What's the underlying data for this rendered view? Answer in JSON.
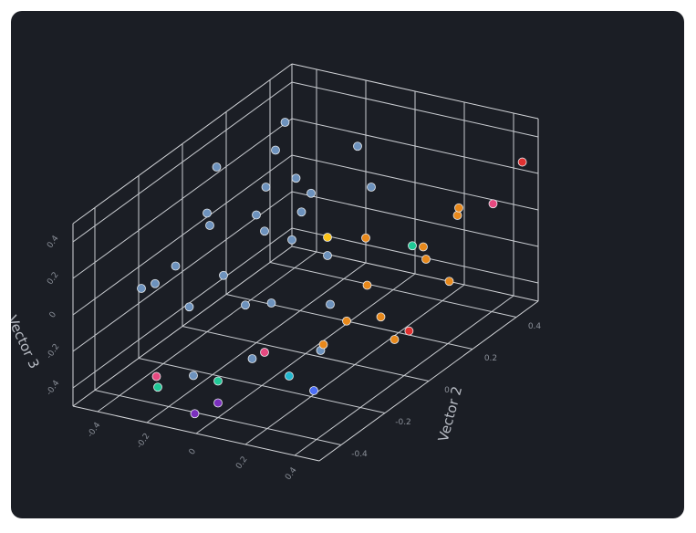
{
  "chart_data": {
    "type": "scatter3d",
    "ylabel": "Vector 2",
    "zlabel": "Vector 3",
    "xlim": [
      -0.5,
      0.5
    ],
    "ylim": [
      -0.5,
      0.5
    ],
    "zlim": [
      -0.5,
      0.5
    ],
    "xticks": [
      -0.4,
      -0.2,
      0,
      0.2,
      0.4
    ],
    "yticks": [
      -0.4,
      -0.2,
      0,
      0.2,
      0.4
    ],
    "zticks": [
      -0.4,
      -0.2,
      0,
      0.2,
      0.4
    ],
    "grid": true,
    "x": [
      -0.35,
      -0.3,
      -0.1,
      -0.25,
      -0.2,
      -0.4,
      -0.3,
      -0.15,
      -0.35,
      -0.2,
      -0.1,
      -0.3,
      -0.4,
      -0.25,
      0.0,
      -0.05,
      -0.2,
      -0.45,
      -0.3,
      0.1,
      0.05,
      -0.1,
      0.15,
      -0.35,
      -0.2,
      0.0,
      0.35,
      0.3,
      0.4,
      0.25,
      0.45,
      0.2,
      0.35,
      0.3,
      0.45,
      0.4,
      0.25,
      0.45,
      0.1,
      -0.25,
      0.48,
      0.42,
      0.3,
      -0.2,
      0.0,
      0.0,
      0.2,
      0.3,
      -0.05,
      0.0
    ],
    "y": [
      0.3,
      0.2,
      0.35,
      0.1,
      0.0,
      0.0,
      -0.1,
      0.15,
      -0.2,
      -0.15,
      0.05,
      0.15,
      -0.3,
      -0.25,
      0.1,
      -0.1,
      0.25,
      0.1,
      -0.35,
      0.0,
      -0.3,
      -0.4,
      -0.1,
      0.35,
      -0.05,
      0.3,
      0.3,
      0.2,
      0.1,
      0.0,
      0.15,
      0.05,
      -0.05,
      -0.15,
      -0.1,
      0.25,
      -0.2,
      0.35,
      -0.3,
      -0.4,
      0.45,
      0.0,
      0.15,
      -0.45,
      -0.4,
      0.1,
      -0.3,
      -0.3,
      -0.45,
      -0.4
    ],
    "z": [
      0.4,
      0.35,
      0.3,
      0.25,
      0.2,
      0.15,
      0.2,
      0.1,
      0.05,
      0.0,
      0.05,
      -0.05,
      0.0,
      -0.1,
      -0.05,
      -0.15,
      0.1,
      0.3,
      0.1,
      -0.2,
      -0.25,
      -0.3,
      -0.35,
      0.05,
      -0.25,
      0.15,
      0.1,
      0.0,
      0.05,
      -0.05,
      -0.1,
      0.15,
      -0.15,
      -0.1,
      -0.2,
      0.2,
      -0.2,
      0.15,
      -0.2,
      -0.35,
      0.3,
      -0.25,
      0.05,
      -0.35,
      -0.3,
      0.05,
      -0.3,
      -0.35,
      -0.45,
      -0.42
    ],
    "colors": [
      "#6d92bd",
      "#6d92bd",
      "#6d92bd",
      "#6d92bd",
      "#6d92bd",
      "#6d92bd",
      "#6d92bd",
      "#6d92bd",
      "#6d92bd",
      "#6d92bd",
      "#6d92bd",
      "#6d92bd",
      "#6d92bd",
      "#6d92bd",
      "#6d92bd",
      "#6d92bd",
      "#6d92bd",
      "#6d92bd",
      "#6d92bd",
      "#6d92bd",
      "#6d92bd",
      "#6d92bd",
      "#6d92bd",
      "#6d92bd",
      "#6d92bd",
      "#6d92bd",
      "#e8891c",
      "#e8891c",
      "#e8891c",
      "#e8891c",
      "#e8891c",
      "#e8891c",
      "#e8891c",
      "#e8891c",
      "#e8891c",
      "#e8891c",
      "#e8891c",
      "#e64980",
      "#e64980",
      "#e64980",
      "#e03131",
      "#e03131",
      "#20c997",
      "#20c997",
      "#20c997",
      "#fcc419",
      "#22b8cf",
      "#4c6ef5",
      "#7b2fbe",
      "#7b2fbe"
    ]
  }
}
